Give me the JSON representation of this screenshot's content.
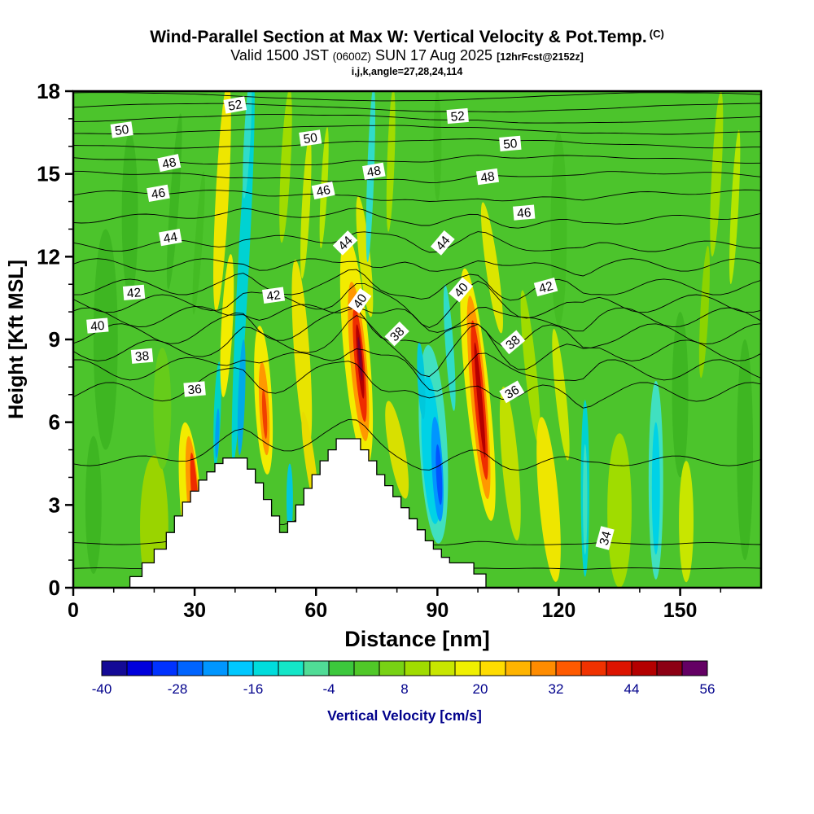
{
  "header": {
    "title": "Wind-Parallel Section at Max W: Vertical Velocity & Pot.Temp.",
    "title_unit": "(C)",
    "valid_prefix": "Valid 1500 JST",
    "valid_paren": "(0600Z)",
    "valid_date": "SUN 17 Aug 2025",
    "fcst_tag": "[12hrFcst@2152z]",
    "params": "i,j,k,angle=27,28,24,114"
  },
  "chart_data": {
    "type": "heatmap",
    "title": "Wind-Parallel Section at Max W: Vertical Velocity & Pot.Temp. (C)",
    "subtitle": "Valid 1500 JST (0600Z) SUN 17 Aug 2025 [12hrFcst@2152z]",
    "annotation": "i,j,k,angle=27,28,24,114",
    "xlabel": "Distance [nm]",
    "ylabel": "Height [Kft MSL]",
    "xlim": [
      0,
      170
    ],
    "ylim": [
      0,
      18
    ],
    "x_ticks": [
      0,
      30,
      60,
      90,
      120,
      150
    ],
    "y_ticks": [
      0,
      3,
      6,
      9,
      12,
      15,
      18
    ],
    "field_background_color": "#4cc42c",
    "colorbar": {
      "label": "Vertical Velocity [cm/s]",
      "min": -40,
      "max": 56,
      "step": 4,
      "tick_labels": [
        -40,
        -28,
        -16,
        -4,
        8,
        20,
        32,
        44,
        56
      ],
      "segment_colors": [
        "#140a96",
        "#0000dc",
        "#0032ff",
        "#0064ff",
        "#0096ff",
        "#00c8ff",
        "#00dcdc",
        "#14e6c8",
        "#50dc96",
        "#3cc83c",
        "#50c828",
        "#78d214",
        "#a0dc00",
        "#c8e600",
        "#f0f000",
        "#ffdc00",
        "#ffb400",
        "#ff8c00",
        "#ff5a00",
        "#f03200",
        "#dc1400",
        "#b40000",
        "#8c0014",
        "#640064"
      ]
    },
    "contours": {
      "variable": "Potential Temperature (C)",
      "interval": 1,
      "labeled_levels": [
        34,
        36,
        38,
        40,
        42,
        44,
        46,
        48,
        50,
        52
      ],
      "base_heights_kft": {
        "33": 0.7,
        "34": 1.6,
        "35": 4.6,
        "36": 7.1,
        "37": 7.9,
        "38": 8.6,
        "39": 9.2,
        "40": 9.8,
        "41": 10.3,
        "42": 10.9,
        "43": 11.7,
        "44": 12.5,
        "45": 13.4,
        "46": 14.2,
        "47": 14.9,
        "48": 15.5,
        "49": 16.1,
        "50": 16.6,
        "51": 17,
        "52": 17.4,
        "53": 17.8
      },
      "labels": [
        {
          "x": 12,
          "y": 16.6,
          "text": "50",
          "rot": -8
        },
        {
          "x": 40,
          "y": 17.5,
          "text": "52",
          "rot": -10
        },
        {
          "x": 58.6,
          "y": 16.3,
          "text": "50",
          "rot": -8
        },
        {
          "x": 95,
          "y": 17.1,
          "text": "52",
          "rot": -5
        },
        {
          "x": 108,
          "y": 16.1,
          "text": "50",
          "rot": -5
        },
        {
          "x": 23.7,
          "y": 15.4,
          "text": "48",
          "rot": -12
        },
        {
          "x": 74.3,
          "y": 15.1,
          "text": "48",
          "rot": -10
        },
        {
          "x": 102.4,
          "y": 14.9,
          "text": "48",
          "rot": -8
        },
        {
          "x": 21,
          "y": 14.3,
          "text": "46",
          "rot": -10
        },
        {
          "x": 61.8,
          "y": 14.4,
          "text": "46",
          "rot": -12
        },
        {
          "x": 111.4,
          "y": 13.6,
          "text": "46",
          "rot": -5
        },
        {
          "x": 24,
          "y": 12.7,
          "text": "44",
          "rot": -10
        },
        {
          "x": 67.2,
          "y": 12.5,
          "text": "44",
          "rot": -45
        },
        {
          "x": 91.3,
          "y": 12.5,
          "text": "44",
          "rot": -50
        },
        {
          "x": 15,
          "y": 10.7,
          "text": "42",
          "rot": -5
        },
        {
          "x": 49.5,
          "y": 10.6,
          "text": "42",
          "rot": -8
        },
        {
          "x": 116.8,
          "y": 10.9,
          "text": "42",
          "rot": -15
        },
        {
          "x": 6,
          "y": 9.5,
          "text": "40",
          "rot": -5
        },
        {
          "x": 70.8,
          "y": 10.4,
          "text": "40",
          "rot": -55
        },
        {
          "x": 95.8,
          "y": 10.8,
          "text": "40",
          "rot": -50
        },
        {
          "x": 17,
          "y": 8.4,
          "text": "38",
          "rot": -5
        },
        {
          "x": 80,
          "y": 9.2,
          "text": "38",
          "rot": -45
        },
        {
          "x": 108.6,
          "y": 8.9,
          "text": "38",
          "rot": -40
        },
        {
          "x": 30,
          "y": 7.2,
          "text": "36",
          "rot": -5
        },
        {
          "x": 108.4,
          "y": 7.1,
          "text": "36",
          "rot": -30
        },
        {
          "x": 131.4,
          "y": 1.8,
          "text": "34",
          "rot": -75
        }
      ]
    },
    "terrain_profile_nm_kft": [
      [
        12,
        0
      ],
      [
        14,
        0.4
      ],
      [
        17,
        0.9
      ],
      [
        20,
        1.4
      ],
      [
        23,
        2
      ],
      [
        25,
        2.6
      ],
      [
        27,
        3.1
      ],
      [
        29,
        3.5
      ],
      [
        31,
        3.9
      ],
      [
        33,
        4.2
      ],
      [
        35,
        4.5
      ],
      [
        37,
        4.7
      ],
      [
        41,
        4.7
      ],
      [
        43,
        4.3
      ],
      [
        45,
        3.8
      ],
      [
        47,
        3.2
      ],
      [
        49,
        2.6
      ],
      [
        51,
        2
      ],
      [
        53,
        2.4
      ],
      [
        55,
        3
      ],
      [
        57,
        3.6
      ],
      [
        59,
        4.1
      ],
      [
        61,
        4.6
      ],
      [
        63,
        5
      ],
      [
        65,
        5.4
      ],
      [
        69,
        5.4
      ],
      [
        71,
        5
      ],
      [
        73,
        4.6
      ],
      [
        75,
        4.1
      ],
      [
        77,
        3.7
      ],
      [
        79,
        3.3
      ],
      [
        81,
        2.9
      ],
      [
        83,
        2.5
      ],
      [
        85,
        2.1
      ],
      [
        87,
        1.7
      ],
      [
        89,
        1.4
      ],
      [
        91,
        1.1
      ],
      [
        93,
        0.9
      ],
      [
        97,
        0.9
      ],
      [
        99,
        0.5
      ],
      [
        102,
        0
      ]
    ],
    "velocity_features": [
      {
        "x": 20,
        "y": 2.2,
        "rx": 3.5,
        "ry": 2.6,
        "color": "#9ad400",
        "rot": 0
      },
      {
        "x": 22,
        "y": 6.5,
        "rx": 2.2,
        "ry": 2.2,
        "color": "#66cc1a",
        "rot": 0
      },
      {
        "x": 8,
        "y": 9,
        "rx": 3,
        "ry": 4,
        "color": "#3eb622",
        "rot": 0
      },
      {
        "x": 14,
        "y": 13.5,
        "rx": 2,
        "ry": 3,
        "color": "#3eb622",
        "rot": 0
      },
      {
        "x": 5,
        "y": 3,
        "rx": 2,
        "ry": 2.5,
        "color": "#3eb622",
        "rot": 0
      },
      {
        "x": 25,
        "y": 14,
        "rx": 1.1,
        "ry": 3.2,
        "color": "#3eb622",
        "rot": 4
      },
      {
        "x": 31,
        "y": 12.5,
        "rx": 0.9,
        "ry": 2.6,
        "color": "#44bc24",
        "rot": 4
      },
      {
        "x": 120,
        "y": 13,
        "rx": 2,
        "ry": 3.5,
        "color": "#44bc24",
        "rot": 0
      },
      {
        "x": 90,
        "y": 16,
        "rx": 1,
        "ry": 2,
        "color": "#44bc24",
        "rot": 0
      },
      {
        "x": 150,
        "y": 7,
        "rx": 2,
        "ry": 3,
        "color": "#3eb622",
        "rot": 0
      },
      {
        "x": 166,
        "y": 5,
        "rx": 2,
        "ry": 4,
        "color": "#3eb622",
        "rot": 0
      },
      {
        "x": 29,
        "y": 3.1,
        "rx": 2.6,
        "ry": 2.9,
        "color": "#f2ec00",
        "rot": -4
      },
      {
        "x": 29.6,
        "y": 3.2,
        "rx": 1.5,
        "ry": 2.3,
        "color": "#ff9800",
        "rot": -4
      },
      {
        "x": 30,
        "y": 3.3,
        "rx": 0.8,
        "ry": 1.6,
        "color": "#ee2c00",
        "rot": -4
      },
      {
        "x": 26,
        "y": 1.2,
        "rx": 1.2,
        "ry": 1,
        "color": "#ffb400",
        "rot": 0
      },
      {
        "x": 35.6,
        "y": 6.3,
        "rx": 0.85,
        "ry": 1.9,
        "color": "#00d2c8",
        "rot": 2
      },
      {
        "x": 35.6,
        "y": 5.6,
        "rx": 0.5,
        "ry": 0.9,
        "color": "#00a0f0",
        "rot": 2
      },
      {
        "x": 36.8,
        "y": 14.2,
        "rx": 1.6,
        "ry": 4.2,
        "color": "#eee600",
        "rot": 3
      },
      {
        "x": 38,
        "y": 9.5,
        "rx": 1.4,
        "ry": 2.6,
        "color": "#f2ec00",
        "rot": 3
      },
      {
        "x": 42,
        "y": 11.5,
        "rx": 1.35,
        "ry": 7,
        "color": "#00d2d2",
        "rot": 3
      },
      {
        "x": 41.6,
        "y": 6.9,
        "rx": 0.85,
        "ry": 2.1,
        "color": "#00aae6",
        "rot": 2
      },
      {
        "x": 43,
        "y": 16.3,
        "rx": 0.8,
        "ry": 2.2,
        "color": "#30dcc8",
        "rot": 3
      },
      {
        "x": 47,
        "y": 6.8,
        "rx": 2.1,
        "ry": 2.7,
        "color": "#f2ec00",
        "rot": -3
      },
      {
        "x": 47.2,
        "y": 6.5,
        "rx": 1.2,
        "ry": 1.7,
        "color": "#ff9800",
        "rot": -3
      },
      {
        "x": 47.3,
        "y": 6.3,
        "rx": 0.55,
        "ry": 0.9,
        "color": "#f04000",
        "rot": -3
      },
      {
        "x": 53.5,
        "y": 3.2,
        "rx": 0.8,
        "ry": 1.3,
        "color": "#00c8dc",
        "rot": 0
      },
      {
        "x": 56.5,
        "y": 8.5,
        "rx": 1.9,
        "ry": 3.4,
        "color": "#e8e400",
        "rot": -4
      },
      {
        "x": 52.5,
        "y": 15.3,
        "rx": 1.2,
        "ry": 2.8,
        "color": "#a0dc00",
        "rot": 3
      },
      {
        "x": 57.5,
        "y": 13.8,
        "rx": 1,
        "ry": 2.6,
        "color": "#c8e600",
        "rot": 3
      },
      {
        "x": 62,
        "y": 14.5,
        "rx": 0.8,
        "ry": 2.2,
        "color": "#b4e600",
        "rot": 3
      },
      {
        "x": 58.5,
        "y": 4.6,
        "rx": 1.2,
        "ry": 1.8,
        "color": "#e8dc00",
        "rot": -8
      },
      {
        "x": 70,
        "y": 8.6,
        "rx": 3.2,
        "ry": 4.2,
        "color": "#f2ec00",
        "rot": -5
      },
      {
        "x": 72,
        "y": 12,
        "rx": 1.4,
        "ry": 2.2,
        "color": "#d8e600",
        "rot": -6
      },
      {
        "x": 70.5,
        "y": 8.2,
        "rx": 2,
        "ry": 2.9,
        "color": "#ff9800",
        "rot": -5
      },
      {
        "x": 70.8,
        "y": 8.1,
        "rx": 1.2,
        "ry": 2.1,
        "color": "#ee2c00",
        "rot": -5
      },
      {
        "x": 70.9,
        "y": 8.2,
        "rx": 0.65,
        "ry": 1.35,
        "color": "#b40000",
        "rot": -5
      },
      {
        "x": 70.9,
        "y": 8.3,
        "rx": 0.35,
        "ry": 0.8,
        "color": "#7a0030",
        "rot": -5
      },
      {
        "x": 73.5,
        "y": 15,
        "rx": 0.85,
        "ry": 3.2,
        "color": "#30dcc8",
        "rot": 2
      },
      {
        "x": 78.5,
        "y": 15.5,
        "rx": 0.9,
        "ry": 2.6,
        "color": "#a0dc00",
        "rot": 2
      },
      {
        "x": 80,
        "y": 5,
        "rx": 2,
        "ry": 1.8,
        "color": "#d8e000",
        "rot": -10
      },
      {
        "x": 89,
        "y": 5.2,
        "rx": 3.4,
        "ry": 3.6,
        "color": "#40e0c0",
        "rot": -3
      },
      {
        "x": 88.5,
        "y": 5,
        "rx": 2.3,
        "ry": 2.7,
        "color": "#00d2e6",
        "rot": -3
      },
      {
        "x": 90,
        "y": 4.3,
        "rx": 1.35,
        "ry": 1.9,
        "color": "#0096ff",
        "rot": -3
      },
      {
        "x": 90.4,
        "y": 4.1,
        "rx": 0.7,
        "ry": 1.1,
        "color": "#0055ff",
        "rot": -3
      },
      {
        "x": 93,
        "y": 8.7,
        "rx": 1,
        "ry": 2.3,
        "color": "#30dcc8",
        "rot": -4
      },
      {
        "x": 86,
        "y": 7.5,
        "rx": 0.9,
        "ry": 1.4,
        "color": "#00c8dc",
        "rot": -3
      },
      {
        "x": 100,
        "y": 7,
        "rx": 2.9,
        "ry": 4.6,
        "color": "#f2ec00",
        "rot": -6
      },
      {
        "x": 103.5,
        "y": 11.6,
        "rx": 1.5,
        "ry": 2.4,
        "color": "#dce600",
        "rot": -8
      },
      {
        "x": 100.2,
        "y": 6.9,
        "rx": 1.9,
        "ry": 3.7,
        "color": "#ff9800",
        "rot": -5
      },
      {
        "x": 100.4,
        "y": 6.8,
        "rx": 1.25,
        "ry": 2.9,
        "color": "#ee2c00",
        "rot": -5
      },
      {
        "x": 100.5,
        "y": 6.8,
        "rx": 0.6,
        "ry": 2.1,
        "color": "#b40000",
        "rot": -5
      },
      {
        "x": 108,
        "y": 4.5,
        "rx": 2,
        "ry": 2.8,
        "color": "#c0e000",
        "rot": -5
      },
      {
        "x": 113,
        "y": 8,
        "rx": 1.4,
        "ry": 2.8,
        "color": "#a0dc00",
        "rot": -6
      },
      {
        "x": 117.5,
        "y": 3.2,
        "rx": 2.4,
        "ry": 3,
        "color": "#eee600",
        "rot": -5
      },
      {
        "x": 120.5,
        "y": 7,
        "rx": 1.3,
        "ry": 2.4,
        "color": "#c8e600",
        "rot": -6
      },
      {
        "x": 126.5,
        "y": 3.6,
        "rx": 1.05,
        "ry": 3.2,
        "color": "#00d2d2",
        "rot": 0
      },
      {
        "x": 126.5,
        "y": 3.2,
        "rx": 0.55,
        "ry": 2,
        "color": "#40e0c0",
        "rot": 0
      },
      {
        "x": 135,
        "y": 2.8,
        "rx": 3,
        "ry": 2.8,
        "color": "#a0dc00",
        "rot": 0
      },
      {
        "x": 144,
        "y": 3.9,
        "rx": 1.8,
        "ry": 3.6,
        "color": "#40e0c0",
        "rot": 0
      },
      {
        "x": 144,
        "y": 3.6,
        "rx": 1,
        "ry": 2.4,
        "color": "#00d2e6",
        "rot": 0
      },
      {
        "x": 151.5,
        "y": 2.4,
        "rx": 1.8,
        "ry": 2.2,
        "color": "#c8e600",
        "rot": 0
      },
      {
        "x": 159,
        "y": 15,
        "rx": 1.2,
        "ry": 3,
        "color": "#a0dc00",
        "rot": 3
      },
      {
        "x": 163.5,
        "y": 13.8,
        "rx": 0.9,
        "ry": 2.8,
        "color": "#b4e600",
        "rot": 3
      },
      {
        "x": 156,
        "y": 10,
        "rx": 1,
        "ry": 2.4,
        "color": "#8cd400",
        "rot": 3
      }
    ]
  }
}
